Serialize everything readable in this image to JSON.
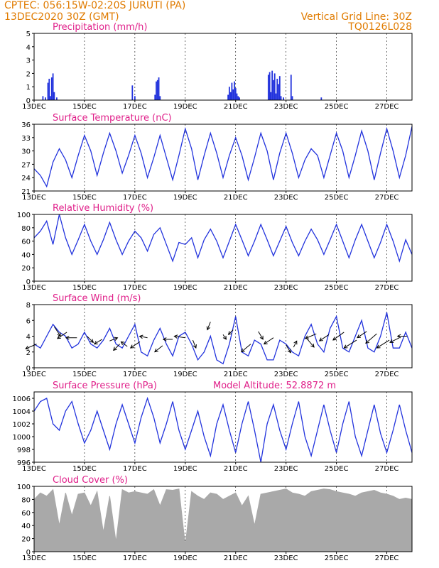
{
  "header": {
    "station": "CPTEC:   056:15W-02:20S   JURUTI (PA)",
    "run": "13DEC2020 30Z (GMT)",
    "grid_note": "Vertical Grid Line: 30Z",
    "code": "TQ0126L028"
  },
  "colors": {
    "header": "#e07b00",
    "title": "#e0208a",
    "series": "#2233dd",
    "bars": "#2233dd",
    "cloud": "#a9a9a9"
  },
  "chart_data": [
    {
      "type": "bar",
      "title": "Precipitation (mm/h)",
      "x_labels": [
        "13DEC",
        "15DEC",
        "17DEC",
        "19DEC",
        "21DEC",
        "23DEC",
        "25DEC",
        "27DEC"
      ],
      "ylim": [
        0,
        5
      ],
      "yticks": [
        0,
        1,
        2,
        3,
        4,
        5
      ],
      "x": [
        0.35,
        0.45,
        0.55,
        0.6,
        0.65,
        0.7,
        0.75,
        0.8,
        0.9,
        3.9,
        4.0,
        4.8,
        4.85,
        4.9,
        4.95,
        5.0,
        7.7,
        7.75,
        7.8,
        7.85,
        7.9,
        7.95,
        8.0,
        8.05,
        8.1,
        8.15,
        9.3,
        9.35,
        9.4,
        9.45,
        9.5,
        9.55,
        9.6,
        9.65,
        9.7,
        9.75,
        9.8,
        9.9,
        10.2,
        10.25,
        11.4
      ],
      "values": [
        0.3,
        0.2,
        1.3,
        1.6,
        0.3,
        1.7,
        2.0,
        0.6,
        0.2,
        1.1,
        0.3,
        0.4,
        1.4,
        1.5,
        1.7,
        0.3,
        0.4,
        1.0,
        0.6,
        1.3,
        0.8,
        1.4,
        0.9,
        0.5,
        0.3,
        0.2,
        1.9,
        2.1,
        0.6,
        2.2,
        1.5,
        2.0,
        0.5,
        1.6,
        1.2,
        1.8,
        0.3,
        0.2,
        1.9,
        0.3,
        0.2
      ]
    },
    {
      "type": "line",
      "title": "Surface Temperature (nC)",
      "ylim": [
        21,
        36
      ],
      "yticks": [
        21,
        24,
        27,
        30,
        33,
        36
      ],
      "x": [
        0,
        0.25,
        0.5,
        0.75,
        1,
        1.25,
        1.5,
        1.75,
        2,
        2.25,
        2.5,
        2.75,
        3,
        3.25,
        3.5,
        3.75,
        4,
        4.25,
        4.5,
        4.75,
        5,
        5.25,
        5.5,
        5.75,
        6,
        6.25,
        6.5,
        6.75,
        7,
        7.25,
        7.5,
        7.75,
        8,
        8.25,
        8.5,
        8.75,
        9,
        9.25,
        9.5,
        9.75,
        10,
        10.25,
        10.5,
        10.75,
        11,
        11.25,
        11.5,
        11.75,
        12,
        12.25,
        12.5,
        12.75,
        13,
        13.25,
        13.5,
        13.75,
        14,
        14.25,
        14.5,
        14.75,
        15
      ],
      "values": [
        26,
        24.5,
        22,
        27.5,
        30.5,
        28,
        24,
        29,
        33.5,
        30,
        24.5,
        29.5,
        34,
        30,
        25,
        29,
        33.5,
        29.5,
        24,
        28.5,
        33.5,
        28.5,
        23.5,
        29,
        35,
        30.5,
        23.5,
        29,
        34,
        29.5,
        24,
        29,
        33,
        29,
        23.5,
        28.5,
        34,
        30,
        23.5,
        29.5,
        34,
        29.5,
        24,
        28,
        30.5,
        29,
        24,
        29,
        34,
        30,
        24,
        29,
        34.5,
        30,
        23.5,
        29.5,
        35,
        30,
        24,
        29,
        35.5
      ],
      "series": [
        {
          "name": "",
          "values": [
            26,
            24.5,
            22,
            27.5,
            30.5,
            28,
            24,
            29,
            33.5,
            30,
            24.5,
            29.5,
            34,
            30,
            25,
            29,
            33.5,
            29.5,
            24,
            28.5,
            33.5,
            28.5,
            23.5,
            29,
            35,
            30.5,
            23.5,
            29,
            34,
            29.5,
            24,
            29,
            33,
            29,
            23.5,
            28.5,
            34,
            30,
            23.5,
            29.5,
            34,
            29.5,
            24,
            28,
            30.5,
            29,
            24,
            29,
            34,
            30,
            24,
            29,
            34.5,
            30,
            23.5,
            29.5,
            35,
            30,
            24,
            29,
            35.5
          ]
        }
      ]
    },
    {
      "type": "line",
      "title": "Relative Humidity (%)",
      "ylim": [
        0,
        100
      ],
      "yticks": [
        0,
        20,
        40,
        60,
        80,
        100
      ],
      "x": [
        0,
        0.25,
        0.5,
        0.75,
        1,
        1.25,
        1.5,
        1.75,
        2,
        2.25,
        2.5,
        2.75,
        3,
        3.25,
        3.5,
        3.75,
        4,
        4.25,
        4.5,
        4.75,
        5,
        5.25,
        5.5,
        5.75,
        6,
        6.25,
        6.5,
        6.75,
        7,
        7.25,
        7.5,
        7.75,
        8,
        8.25,
        8.5,
        8.75,
        9,
        9.25,
        9.5,
        9.75,
        10,
        10.25,
        10.5,
        10.75,
        11,
        11.25,
        11.5,
        11.75,
        12,
        12.25,
        12.5,
        12.75,
        13,
        13.25,
        13.5,
        13.75,
        14,
        14.25,
        14.5,
        14.75,
        15
      ],
      "values": [
        65,
        75,
        90,
        55,
        100,
        65,
        40,
        62,
        85,
        60,
        40,
        62,
        88,
        62,
        40,
        60,
        75,
        65,
        45,
        70,
        80,
        55,
        30,
        58,
        55,
        65,
        35,
        62,
        78,
        60,
        35,
        60,
        85,
        62,
        38,
        60,
        85,
        62,
        38,
        60,
        82,
        58,
        38,
        60,
        78,
        62,
        40,
        62,
        85,
        60,
        35,
        62,
        85,
        60,
        35,
        58,
        85,
        60,
        30,
        62,
        40
      ],
      "series": [
        {
          "name": "",
          "values": [
            65,
            75,
            90,
            55,
            100,
            65,
            40,
            62,
            85,
            60,
            40,
            62,
            88,
            62,
            40,
            60,
            75,
            65,
            45,
            70,
            80,
            55,
            30,
            58,
            55,
            65,
            35,
            62,
            78,
            60,
            35,
            60,
            85,
            62,
            38,
            60,
            85,
            62,
            38,
            60,
            82,
            58,
            38,
            60,
            78,
            62,
            40,
            62,
            85,
            60,
            35,
            62,
            85,
            60,
            35,
            58,
            85,
            60,
            30,
            62,
            40
          ]
        }
      ]
    },
    {
      "type": "line",
      "title": "Surface Wind (m/s)",
      "ylim": [
        0,
        8
      ],
      "yticks": [
        0,
        2,
        4,
        6,
        8
      ],
      "x": [
        0,
        0.25,
        0.5,
        0.75,
        1,
        1.25,
        1.5,
        1.75,
        2,
        2.25,
        2.5,
        2.75,
        3,
        3.25,
        3.5,
        3.75,
        4,
        4.25,
        4.5,
        4.75,
        5,
        5.25,
        5.5,
        5.75,
        6,
        6.25,
        6.5,
        6.75,
        7,
        7.25,
        7.5,
        7.75,
        8,
        8.25,
        8.5,
        8.75,
        9,
        9.25,
        9.5,
        9.75,
        10,
        10.25,
        10.5,
        10.75,
        11,
        11.25,
        11.5,
        11.75,
        12,
        12.25,
        12.5,
        12.75,
        13,
        13.25,
        13.5,
        13.75,
        14,
        14.25,
        14.5,
        14.75,
        15
      ],
      "values": [
        3,
        2.5,
        4,
        5.5,
        4.5,
        4,
        2.5,
        3,
        4.5,
        3,
        2.5,
        3.5,
        5,
        3,
        2.5,
        4,
        5.5,
        2,
        1.5,
        3.5,
        5,
        3,
        1.5,
        4,
        4.5,
        3,
        1,
        2,
        4,
        1,
        0.5,
        3,
        6.5,
        2,
        1.5,
        3.5,
        3,
        1,
        1,
        3.5,
        3,
        2,
        1.5,
        4,
        5.5,
        3,
        2,
        5,
        6.5,
        2.5,
        2,
        4,
        6,
        2.5,
        2,
        4,
        7,
        2.5,
        2.5,
        4.5,
        2.5
      ],
      "arrows": [
        [
          0.1,
          3.0,
          -0.7,
          -0.3
        ],
        [
          0.8,
          5.2,
          0.4,
          -0.6
        ],
        [
          1.3,
          4.5,
          -0.6,
          -0.4
        ],
        [
          1.7,
          3.8,
          -0.7,
          0.0
        ],
        [
          2.1,
          4.0,
          0.4,
          -0.4
        ],
        [
          2.7,
          3.6,
          -0.5,
          -0.3
        ],
        [
          3.0,
          3.4,
          0.5,
          0.2
        ],
        [
          3.4,
          3.0,
          -0.4,
          -0.4
        ],
        [
          3.7,
          2.7,
          -0.4,
          0.3
        ],
        [
          4.2,
          3.3,
          -0.6,
          -0.4
        ],
        [
          4.5,
          3.8,
          -0.5,
          0.1
        ],
        [
          5.1,
          2.8,
          -0.5,
          -0.4
        ],
        [
          5.5,
          3.6,
          -0.6,
          0.0
        ],
        [
          6.0,
          3.8,
          -0.7,
          0.1
        ],
        [
          6.3,
          3.5,
          0.2,
          -0.5
        ],
        [
          7.0,
          5.8,
          -0.2,
          -0.5
        ],
        [
          7.5,
          4.2,
          0.2,
          -0.3
        ],
        [
          7.9,
          4.8,
          -0.3,
          -0.3
        ],
        [
          8.6,
          3.0,
          -0.6,
          -0.5
        ],
        [
          8.9,
          4.6,
          0.3,
          -0.5
        ],
        [
          9.5,
          3.8,
          -0.6,
          -0.4
        ],
        [
          10.0,
          2.9,
          0.3,
          -0.5
        ],
        [
          10.3,
          2.6,
          0.2,
          0.4
        ],
        [
          10.8,
          3.8,
          0.5,
          -0.6
        ],
        [
          11.2,
          4.3,
          -0.7,
          -0.3
        ],
        [
          11.7,
          4.2,
          -0.6,
          -0.4
        ],
        [
          12.3,
          4.5,
          -0.7,
          -0.5
        ],
        [
          12.8,
          3.5,
          -0.8,
          -0.5
        ],
        [
          13.2,
          4.6,
          -0.6,
          -0.4
        ],
        [
          13.6,
          4.3,
          -0.7,
          -0.6
        ],
        [
          14.1,
          3.5,
          -0.8,
          -0.5
        ],
        [
          14.5,
          3.8,
          -0.6,
          -0.3
        ],
        [
          14.8,
          4.0,
          -0.6,
          0.0
        ]
      ],
      "series": [
        {
          "name": "",
          "values": [
            3,
            2.5,
            4,
            5.5,
            4.5,
            4,
            2.5,
            3,
            4.5,
            3,
            2.5,
            3.5,
            5,
            3,
            2.5,
            4,
            5.5,
            2,
            1.5,
            3.5,
            5,
            3,
            1.5,
            4,
            4.5,
            3,
            1,
            2,
            4,
            1,
            0.5,
            3,
            6.5,
            2,
            1.5,
            3.5,
            3,
            1,
            1,
            3.5,
            3,
            2,
            1.5,
            4,
            5.5,
            3,
            2,
            5,
            6.5,
            2.5,
            2,
            4,
            6,
            2.5,
            2,
            4,
            7,
            2.5,
            2.5,
            4.5,
            2.5
          ]
        }
      ]
    },
    {
      "type": "line",
      "title": "Surface Pressure (hPa)",
      "annotation": "Model Altitude: 52.8872  m",
      "ylim": [
        996,
        1007
      ],
      "yticks": [
        996,
        998,
        1000,
        1002,
        1004,
        1006
      ],
      "x": [
        0,
        0.25,
        0.5,
        0.75,
        1,
        1.25,
        1.5,
        1.75,
        2,
        2.25,
        2.5,
        2.75,
        3,
        3.25,
        3.5,
        3.75,
        4,
        4.25,
        4.5,
        4.75,
        5,
        5.25,
        5.5,
        5.75,
        6,
        6.25,
        6.5,
        6.75,
        7,
        7.25,
        7.5,
        7.75,
        8,
        8.25,
        8.5,
        8.75,
        9,
        9.25,
        9.5,
        9.75,
        10,
        10.25,
        10.5,
        10.75,
        11,
        11.25,
        11.5,
        11.75,
        12,
        12.25,
        12.5,
        12.75,
        13,
        13.25,
        13.5,
        13.75,
        14,
        14.25,
        14.5,
        14.75,
        15
      ],
      "values": [
        1004,
        1005.5,
        1006,
        1002,
        1001,
        1004,
        1005.5,
        1002,
        999,
        1001,
        1004,
        1001,
        998,
        1002,
        1005,
        1002,
        999,
        1003,
        1006,
        1003,
        999,
        1002,
        1005.5,
        1001,
        998,
        1001,
        1004,
        1000,
        997,
        1002,
        1005,
        1001,
        997.5,
        1002,
        1005.5,
        1001,
        996,
        1002,
        1005,
        1001,
        998,
        1002,
        1005.5,
        1000,
        997,
        1001,
        1005,
        1001,
        997.5,
        1002,
        1005.5,
        1000,
        997,
        1001,
        1005,
        1000.5,
        997.5,
        1001,
        1005,
        1001,
        997.5
      ],
      "series": [
        {
          "name": "",
          "values": [
            1004,
            1005.5,
            1006,
            1002,
            1001,
            1004,
            1005.5,
            1002,
            999,
            1001,
            1004,
            1001,
            998,
            1002,
            1005,
            1002,
            999,
            1003,
            1006,
            1003,
            999,
            1002,
            1005.5,
            1001,
            998,
            1001,
            1004,
            1000,
            997,
            1002,
            1005,
            1001,
            997.5,
            1002,
            1005.5,
            1001,
            996,
            1002,
            1005,
            1001,
            998,
            1002,
            1005.5,
            1000,
            997,
            1001,
            1005,
            1001,
            997.5,
            1002,
            1005.5,
            1000,
            997,
            1001,
            1005,
            1000.5,
            997.5,
            1001,
            1005,
            1001,
            997.5
          ]
        }
      ]
    },
    {
      "type": "area",
      "title": "Cloud Cover (%)",
      "ylim": [
        0,
        100
      ],
      "yticks": [
        0,
        20,
        40,
        60,
        80,
        100
      ],
      "x": [
        0,
        0.25,
        0.5,
        0.75,
        1,
        1.25,
        1.5,
        1.75,
        2,
        2.25,
        2.5,
        2.75,
        3,
        3.25,
        3.5,
        3.75,
        4,
        4.25,
        4.5,
        4.75,
        5,
        5.25,
        5.5,
        5.75,
        6,
        6.25,
        6.5,
        6.75,
        7,
        7.25,
        7.5,
        7.75,
        8,
        8.25,
        8.5,
        8.75,
        9,
        9.25,
        9.5,
        9.75,
        10,
        10.25,
        10.5,
        10.75,
        11,
        11.25,
        11.5,
        11.75,
        12,
        12.25,
        12.5,
        12.75,
        13,
        13.25,
        13.5,
        13.75,
        14,
        14.25,
        14.5,
        14.75,
        15
      ],
      "values": [
        80,
        90,
        85,
        95,
        40,
        90,
        55,
        88,
        90,
        70,
        92,
        30,
        85,
        15,
        95,
        90,
        92,
        90,
        88,
        95,
        70,
        95,
        94,
        96,
        10,
        92,
        85,
        80,
        90,
        88,
        80,
        85,
        90,
        70,
        85,
        40,
        88,
        90,
        92,
        94,
        96,
        90,
        88,
        85,
        92,
        94,
        96,
        95,
        92,
        90,
        88,
        85,
        90,
        92,
        94,
        90,
        88,
        85,
        80,
        82,
        80
      ],
      "series": [
        {
          "name": "",
          "values": [
            80,
            90,
            85,
            95,
            40,
            90,
            55,
            88,
            90,
            70,
            92,
            30,
            85,
            15,
            95,
            90,
            92,
            90,
            88,
            95,
            70,
            95,
            94,
            96,
            10,
            92,
            85,
            80,
            90,
            88,
            80,
            85,
            90,
            70,
            85,
            40,
            88,
            90,
            92,
            94,
            96,
            90,
            88,
            85,
            92,
            94,
            96,
            95,
            92,
            90,
            88,
            85,
            90,
            92,
            94,
            90,
            88,
            85,
            80,
            82,
            80
          ]
        }
      ]
    }
  ]
}
